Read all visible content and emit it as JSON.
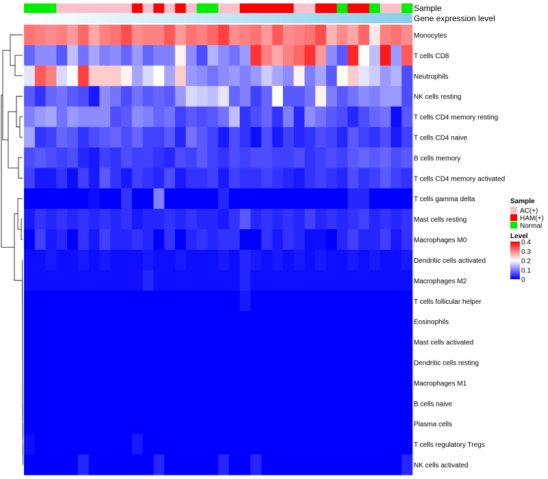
{
  "chart_data": {
    "type": "heatmap",
    "annotation_labels": [
      "Sample",
      "Gene expression level"
    ],
    "rows": [
      "Monocytes",
      "T cells CD8",
      "Neutrophils",
      "NK cells resting",
      "T cells CD4 memory resting",
      "T cells CD4 naive",
      "B cells memory",
      "T cells CD4 memory activated",
      "T cells gamma delta",
      "Mast cells resting",
      "Macrophages M0",
      "Dendritic cells activated",
      "Macrophages M2",
      "T cells follicular helper",
      "Eosinophils",
      "Mast cells activated",
      "Dendritic cells resting",
      "Macrophages M1",
      "B cells naive",
      "Plasma cells",
      "T cells regulatory  Tregs",
      "NK cells activated"
    ],
    "sample_groups": [
      "N",
      "N",
      "N",
      "A",
      "A",
      "A",
      "A",
      "A",
      "A",
      "A",
      "H",
      "A",
      "H",
      "A",
      "H",
      "A",
      "N",
      "N",
      "A",
      "A",
      "H",
      "H",
      "H",
      "H",
      "H",
      "A",
      "A",
      "H",
      "H",
      "N",
      "H",
      "H",
      "N",
      "A",
      "A",
      "N"
    ],
    "values": [
      [
        0.31,
        0.3,
        0.29,
        0.3,
        0.28,
        0.32,
        0.27,
        0.3,
        0.31,
        0.34,
        0.29,
        0.3,
        0.3,
        0.33,
        0.28,
        0.31,
        0.3,
        0.32,
        0.35,
        0.29,
        0.3,
        0.31,
        0.28,
        0.33,
        0.29,
        0.3,
        0.31,
        0.34,
        0.26,
        0.29,
        0.27,
        0.32,
        0.22,
        0.3,
        0.31,
        0.29
      ],
      [
        0.08,
        0.11,
        0.11,
        0.07,
        0.15,
        0.09,
        0.13,
        0.1,
        0.11,
        0.08,
        0.12,
        0.08,
        0.1,
        0.1,
        0.21,
        0.11,
        0.06,
        0.14,
        0.11,
        0.09,
        0.12,
        0.36,
        0.3,
        0.27,
        0.3,
        0.32,
        0.36,
        0.28,
        0.11,
        0.07,
        0.37,
        0.2,
        0.15,
        0.38,
        0.12,
        0.33
      ],
      [
        0.18,
        0.33,
        0.3,
        0.17,
        0.2,
        0.35,
        0.24,
        0.24,
        0.24,
        0.21,
        0.13,
        0.17,
        0.2,
        0.13,
        0.24,
        0.12,
        0.11,
        0.09,
        0.11,
        0.12,
        0.1,
        0.12,
        0.16,
        0.13,
        0.11,
        0.21,
        0.1,
        0.13,
        0.07,
        0.2,
        0.24,
        0.18,
        0.16,
        0.12,
        0.14,
        0.06
      ],
      [
        0.07,
        0.04,
        0.08,
        0.09,
        0.07,
        0.06,
        0.02,
        0.11,
        0.09,
        0.06,
        0.09,
        0.07,
        0.08,
        0.07,
        0.12,
        0.17,
        0.16,
        0.15,
        0.18,
        0.08,
        0.1,
        0.05,
        0.08,
        0.2,
        0.07,
        0.07,
        0.09,
        0.21,
        0.1,
        0.07,
        0.09,
        0.11,
        0.1,
        0.12,
        0.12,
        0.06
      ],
      [
        0.1,
        0.12,
        0.13,
        0.09,
        0.12,
        0.11,
        0.11,
        0.11,
        0.06,
        0.07,
        0.11,
        0.1,
        0.08,
        0.09,
        0.05,
        0.07,
        0.06,
        0.07,
        0.09,
        0.15,
        0.04,
        0.06,
        0.08,
        0.04,
        0.1,
        0.03,
        0.11,
        0.09,
        0.07,
        0.06,
        0.03,
        0.06,
        0.08,
        0.09,
        0.01,
        0.07
      ],
      [
        0.13,
        0.04,
        0.05,
        0.08,
        0.07,
        0.04,
        0.06,
        0.07,
        0.08,
        0.06,
        0.08,
        0.05,
        0.05,
        0.07,
        0.03,
        0.09,
        0.07,
        0.05,
        0.02,
        0.06,
        0.04,
        0.01,
        0.06,
        0.02,
        0.05,
        0.03,
        0.04,
        0.06,
        0.05,
        0.03,
        0.07,
        0.05,
        0.04,
        0.06,
        0.02,
        0.05
      ],
      [
        0.06,
        0.07,
        0.06,
        0.05,
        0.06,
        0.03,
        0.02,
        0.05,
        0.04,
        0.06,
        0.05,
        0.05,
        0.04,
        0.03,
        0.06,
        0.05,
        0.07,
        0.05,
        0.04,
        0.06,
        0.05,
        0.06,
        0.06,
        0.05,
        0.05,
        0.06,
        0.04,
        0.05,
        0.06,
        0.05,
        0.07,
        0.08,
        0.07,
        0.08,
        0.06,
        0.07
      ],
      [
        0.05,
        0.02,
        0.02,
        0.04,
        0.01,
        0.05,
        0.02,
        0.07,
        0.04,
        0.02,
        0.05,
        0.04,
        0.03,
        0.06,
        0.02,
        0.04,
        0.04,
        0.05,
        0.02,
        0.05,
        0.04,
        0.04,
        0.05,
        0.04,
        0.03,
        0.02,
        0.04,
        0.05,
        0.04,
        0.03,
        0.06,
        0.04,
        0.05,
        0.07,
        0.05,
        0.04
      ],
      [
        0.0,
        0.0,
        0.0,
        0.0,
        0.0,
        0.0,
        0.01,
        0.0,
        0.0,
        0.04,
        0.0,
        0.0,
        0.1,
        0.0,
        0.0,
        0.0,
        0.0,
        0.0,
        0.03,
        0.0,
        0.0,
        0.0,
        0.0,
        0.0,
        0.0,
        0.0,
        0.0,
        0.0,
        0.0,
        0.0,
        0.03,
        0.03,
        0.0,
        0.0,
        0.0,
        0.0
      ],
      [
        0.02,
        0.04,
        0.03,
        0.04,
        0.03,
        0.04,
        0.03,
        0.04,
        0.03,
        0.04,
        0.02,
        0.03,
        0.03,
        0.04,
        0.03,
        0.04,
        0.03,
        0.03,
        0.02,
        0.04,
        0.07,
        0.03,
        0.04,
        0.03,
        0.04,
        0.03,
        0.05,
        0.03,
        0.04,
        0.03,
        0.04,
        0.05,
        0.03,
        0.04,
        0.03,
        0.04
      ],
      [
        0.0,
        0.05,
        0.02,
        0.03,
        0.0,
        0.04,
        0.02,
        0.05,
        0.03,
        0.03,
        0.04,
        0.03,
        0.0,
        0.04,
        0.0,
        0.03,
        0.04,
        0.03,
        0.04,
        0.04,
        0.0,
        0.0,
        0.04,
        0.02,
        0.04,
        0.03,
        0.01,
        0.01,
        0.0,
        0.03,
        0.05,
        0.03,
        0.03,
        0.05,
        0.02,
        0.04
      ],
      [
        0.01,
        0.01,
        0.02,
        0.01,
        0.01,
        0.02,
        0.01,
        0.02,
        0.01,
        0.01,
        0.01,
        0.02,
        0.01,
        0.01,
        0.02,
        0.01,
        0.01,
        0.01,
        0.02,
        0.01,
        0.03,
        0.02,
        0.01,
        0.02,
        0.01,
        0.02,
        0.01,
        0.02,
        0.01,
        0.01,
        0.02,
        0.01,
        0.02,
        0.01,
        0.01,
        0.02
      ],
      [
        0.01,
        0.01,
        0.01,
        0.01,
        0.01,
        0.01,
        0.01,
        0.01,
        0.01,
        0.01,
        0.01,
        0.03,
        0.01,
        0.01,
        0.01,
        0.01,
        0.01,
        0.01,
        0.01,
        0.01,
        0.03,
        0.01,
        0.01,
        0.01,
        0.01,
        0.01,
        0.01,
        0.01,
        0.01,
        0.01,
        0.01,
        0.01,
        0.01,
        0.01,
        0.01,
        0.01
      ],
      [
        0.0,
        0.0,
        0.0,
        0.0,
        0.0,
        0.0,
        0.0,
        0.0,
        0.0,
        0.0,
        0.0,
        0.0,
        0.0,
        0.0,
        0.0,
        0.0,
        0.0,
        0.0,
        0.0,
        0.0,
        0.02,
        0.0,
        0.0,
        0.0,
        0.0,
        0.0,
        0.0,
        0.0,
        0.0,
        0.0,
        0.0,
        0.0,
        0.0,
        0.0,
        0.0,
        0.0
      ],
      [
        0.0,
        0.0,
        0.0,
        0.0,
        0.0,
        0.0,
        0.0,
        0.0,
        0.0,
        0.0,
        0.0,
        0.0,
        0.0,
        0.0,
        0.0,
        0.0,
        0.0,
        0.0,
        0.0,
        0.0,
        0.0,
        0.0,
        0.0,
        0.0,
        0.0,
        0.0,
        0.0,
        0.0,
        0.0,
        0.0,
        0.0,
        0.0,
        0.0,
        0.0,
        0.0,
        0.0
      ],
      [
        0.0,
        0.0,
        0.0,
        0.0,
        0.0,
        0.0,
        0.0,
        0.0,
        0.0,
        0.0,
        0.0,
        0.0,
        0.0,
        0.0,
        0.0,
        0.0,
        0.0,
        0.0,
        0.0,
        0.0,
        0.0,
        0.0,
        0.0,
        0.0,
        0.0,
        0.0,
        0.0,
        0.0,
        0.0,
        0.0,
        0.0,
        0.0,
        0.0,
        0.0,
        0.0,
        0.0
      ],
      [
        0.0,
        0.0,
        0.0,
        0.0,
        0.0,
        0.0,
        0.0,
        0.0,
        0.0,
        0.0,
        0.0,
        0.0,
        0.0,
        0.0,
        0.0,
        0.0,
        0.0,
        0.0,
        0.0,
        0.0,
        0.0,
        0.0,
        0.0,
        0.0,
        0.0,
        0.0,
        0.0,
        0.0,
        0.0,
        0.0,
        0.0,
        0.0,
        0.0,
        0.0,
        0.0,
        0.0
      ],
      [
        0.0,
        0.0,
        0.0,
        0.0,
        0.0,
        0.0,
        0.0,
        0.0,
        0.0,
        0.0,
        0.0,
        0.0,
        0.0,
        0.0,
        0.0,
        0.0,
        0.0,
        0.0,
        0.0,
        0.0,
        0.0,
        0.0,
        0.0,
        0.0,
        0.0,
        0.0,
        0.0,
        0.0,
        0.0,
        0.0,
        0.0,
        0.0,
        0.0,
        0.0,
        0.0,
        0.0
      ],
      [
        0.0,
        0.0,
        0.0,
        0.0,
        0.0,
        0.0,
        0.0,
        0.0,
        0.0,
        0.0,
        0.0,
        0.0,
        0.0,
        0.0,
        0.0,
        0.0,
        0.0,
        0.0,
        0.0,
        0.0,
        0.0,
        0.0,
        0.0,
        0.0,
        0.0,
        0.0,
        0.0,
        0.0,
        0.0,
        0.0,
        0.0,
        0.0,
        0.0,
        0.0,
        0.0,
        0.0
      ],
      [
        0.0,
        0.0,
        0.0,
        0.0,
        0.0,
        0.0,
        0.0,
        0.0,
        0.0,
        0.0,
        0.0,
        0.0,
        0.0,
        0.0,
        0.0,
        0.0,
        0.0,
        0.0,
        0.0,
        0.0,
        0.0,
        0.0,
        0.0,
        0.0,
        0.0,
        0.0,
        0.0,
        0.0,
        0.0,
        0.0,
        0.0,
        0.0,
        0.0,
        0.0,
        0.0,
        0.0
      ],
      [
        0.01,
        0.0,
        0.0,
        0.0,
        0.0,
        0.0,
        0.0,
        0.0,
        0.0,
        0.0,
        0.02,
        0.0,
        0.0,
        0.0,
        0.0,
        0.0,
        0.0,
        0.0,
        0.0,
        0.0,
        0.0,
        0.0,
        0.0,
        0.0,
        0.0,
        0.0,
        0.0,
        0.0,
        0.0,
        0.0,
        0.0,
        0.0,
        0.0,
        0.0,
        0.0,
        0.0
      ],
      [
        0.0,
        0.0,
        0.0,
        0.0,
        0.0,
        0.03,
        0.0,
        0.0,
        0.0,
        0.0,
        0.0,
        0.0,
        0.03,
        0.0,
        0.0,
        0.0,
        0.0,
        0.0,
        0.03,
        0.0,
        0.0,
        0.03,
        0.0,
        0.0,
        0.0,
        0.0,
        0.0,
        0.0,
        0.0,
        0.0,
        0.0,
        0.0,
        0.0,
        0.0,
        0.0,
        0.03
      ]
    ],
    "sample_legend": {
      "title": "Sample",
      "items": [
        {
          "code": "A",
          "label": "AC(+)",
          "color": "#ffc0cb"
        },
        {
          "code": "H",
          "label": "HAM(+)",
          "color": "#ff0000"
        },
        {
          "code": "N",
          "label": "Normal",
          "color": "#00ee00"
        }
      ]
    },
    "expression_bar": {
      "color_start": "#ffffff",
      "color_end": "#87ceeb"
    },
    "color_scale": {
      "title": "Level",
      "min": 0,
      "max": 0.4,
      "mid": 0.2,
      "low_color": "#0000ff",
      "mid_color": "#ffffff",
      "high_color": "#ff0000",
      "ticks": [
        "0.4",
        "0.3",
        "0.2",
        "0.1",
        "0"
      ]
    },
    "legend_position": "right"
  }
}
